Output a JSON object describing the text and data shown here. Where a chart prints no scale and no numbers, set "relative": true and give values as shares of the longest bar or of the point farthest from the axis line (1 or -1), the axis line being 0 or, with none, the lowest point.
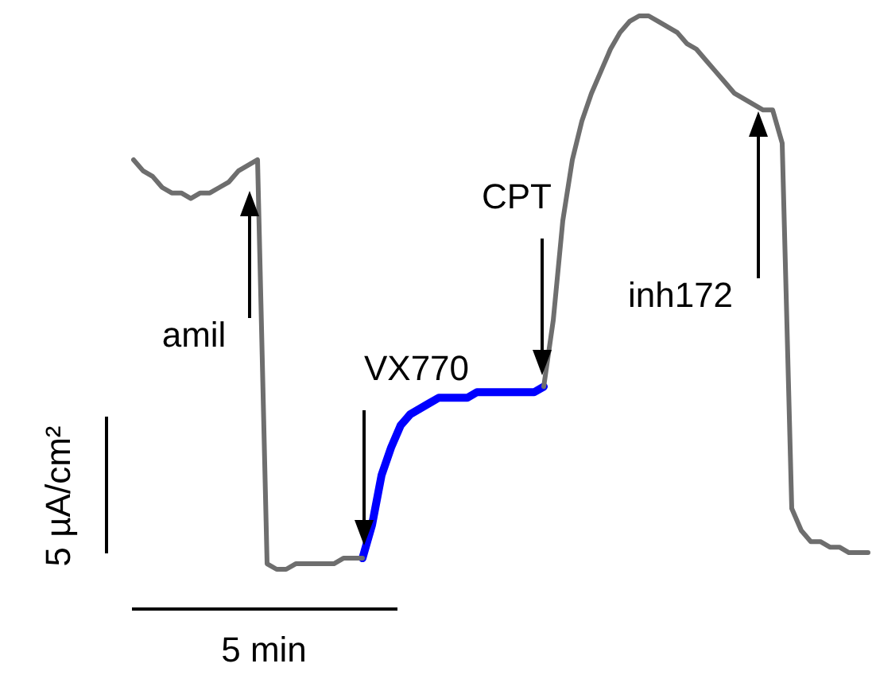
{
  "chart_data": {
    "type": "line",
    "relative": true,
    "legend": false,
    "marker": "none",
    "line_style": "solid",
    "categories": [
      null,
      null,
      null,
      null,
      null,
      null,
      null,
      null,
      null,
      null,
      null,
      null,
      null,
      null,
      null,
      null,
      null,
      null,
      null,
      null,
      null,
      null,
      null,
      null,
      null,
      null,
      null,
      null,
      null,
      null,
      null,
      null,
      null,
      null,
      null,
      null,
      null,
      null,
      null,
      null,
      null,
      null,
      null,
      null,
      null,
      null,
      null,
      null,
      null,
      null,
      null,
      null,
      null,
      null,
      null,
      null,
      null,
      null,
      null,
      null,
      null,
      null,
      null,
      null,
      null,
      null,
      null,
      null,
      null,
      null,
      null,
      null,
      null,
      null,
      null,
      null,
      null,
      null
    ],
    "series": [
      {
        "color": "#6e6e6e",
        "values": [
          0.74,
          0.72,
          0.71,
          0.69,
          0.68,
          0.68,
          0.67,
          0.68,
          0.68,
          0.69,
          0.7,
          0.72,
          0.73,
          0.74,
          0.01,
          0,
          0,
          0.01,
          0.01,
          0.01,
          0.01,
          0.01,
          0.02,
          0.02,
          0.02,
          null,
          null,
          null,
          null,
          null,
          null,
          null,
          null,
          null,
          null,
          null,
          null,
          null,
          null,
          null,
          null,
          null,
          null,
          0.33,
          0.45,
          0.63,
          0.74,
          0.81,
          0.86,
          0.9,
          0.94,
          0.97,
          0.99,
          1.0,
          1,
          0.99,
          0.98,
          0.97,
          0.95,
          0.94,
          0.92,
          0.9,
          0.88,
          0.86,
          0.85,
          0.84,
          0.83,
          0.83,
          0.77,
          0.11,
          0.07,
          0.05,
          0.05,
          0.04,
          0.04,
          0.03,
          0.03,
          0.03
        ]
      },
      {
        "color": "#0000ff",
        "values": [
          null,
          null,
          null,
          null,
          null,
          null,
          null,
          null,
          null,
          null,
          null,
          null,
          null,
          null,
          null,
          null,
          null,
          null,
          null,
          null,
          null,
          null,
          null,
          null,
          0.02,
          0.08,
          0.17,
          0.22,
          0.26,
          0.28,
          0.29,
          0.3,
          0.31,
          0.31,
          0.31,
          0.31,
          0.32,
          0.32,
          0.32,
          0.32,
          0.32,
          0.32,
          0.32,
          0.33,
          null,
          null,
          null,
          null,
          null,
          null,
          null,
          null,
          null,
          null,
          null,
          null,
          null,
          null,
          null,
          null,
          null,
          null,
          null,
          null,
          null,
          null,
          null,
          null,
          null,
          null,
          null,
          null,
          null,
          null,
          null,
          null,
          null,
          null
        ]
      }
    ],
    "annotations": [
      "amil",
      "VX770",
      "CPT",
      "inh172",
      "5 µA/cm²",
      "5 min"
    ]
  }
}
